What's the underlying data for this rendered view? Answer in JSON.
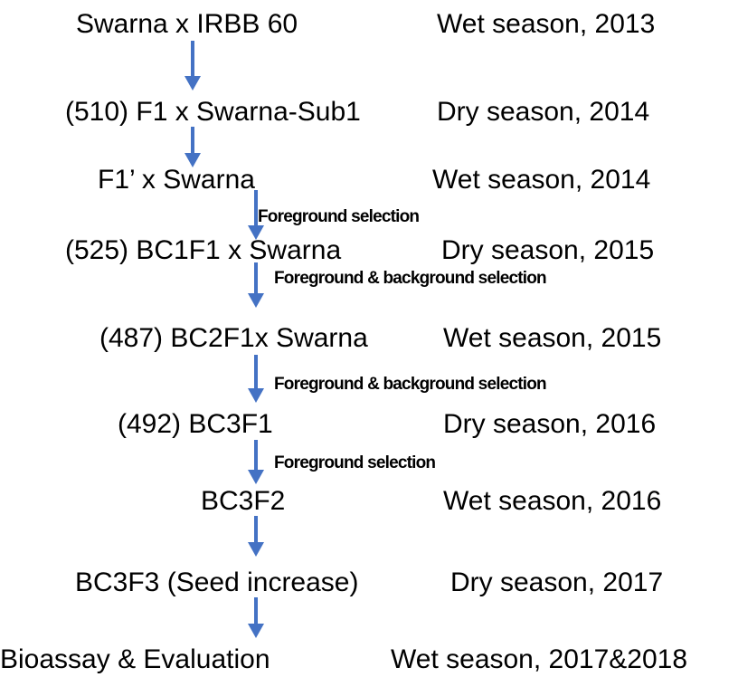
{
  "steps": [
    {
      "label": "Swarna x IRBB 60",
      "season": "Wet season, 2013"
    },
    {
      "label": "(510) F1 x Swarna-Sub1",
      "season": "Dry season, 2014"
    },
    {
      "label": "F1’ x Swarna",
      "season": "Wet season, 2014"
    },
    {
      "label": "(525) BC1F1 x Swarna",
      "season": "Dry season, 2015"
    },
    {
      "label": "(487) BC2F1x Swarna",
      "season": "Wet season, 2015"
    },
    {
      "label": "(492) BC3F1",
      "season": "Dry season, 2016"
    },
    {
      "label": "BC3F2",
      "season": "Wet season, 2016"
    },
    {
      "label": "BC3F3 (Seed increase)",
      "season": "Dry season, 2017"
    },
    {
      "label": "Bioassay & Evaluation",
      "season": "Wet season, 2017&2018"
    }
  ],
  "selections": [
    "Foreground selection",
    "Foreground & background selection",
    "Foreground & background selection",
    "Foreground selection"
  ]
}
